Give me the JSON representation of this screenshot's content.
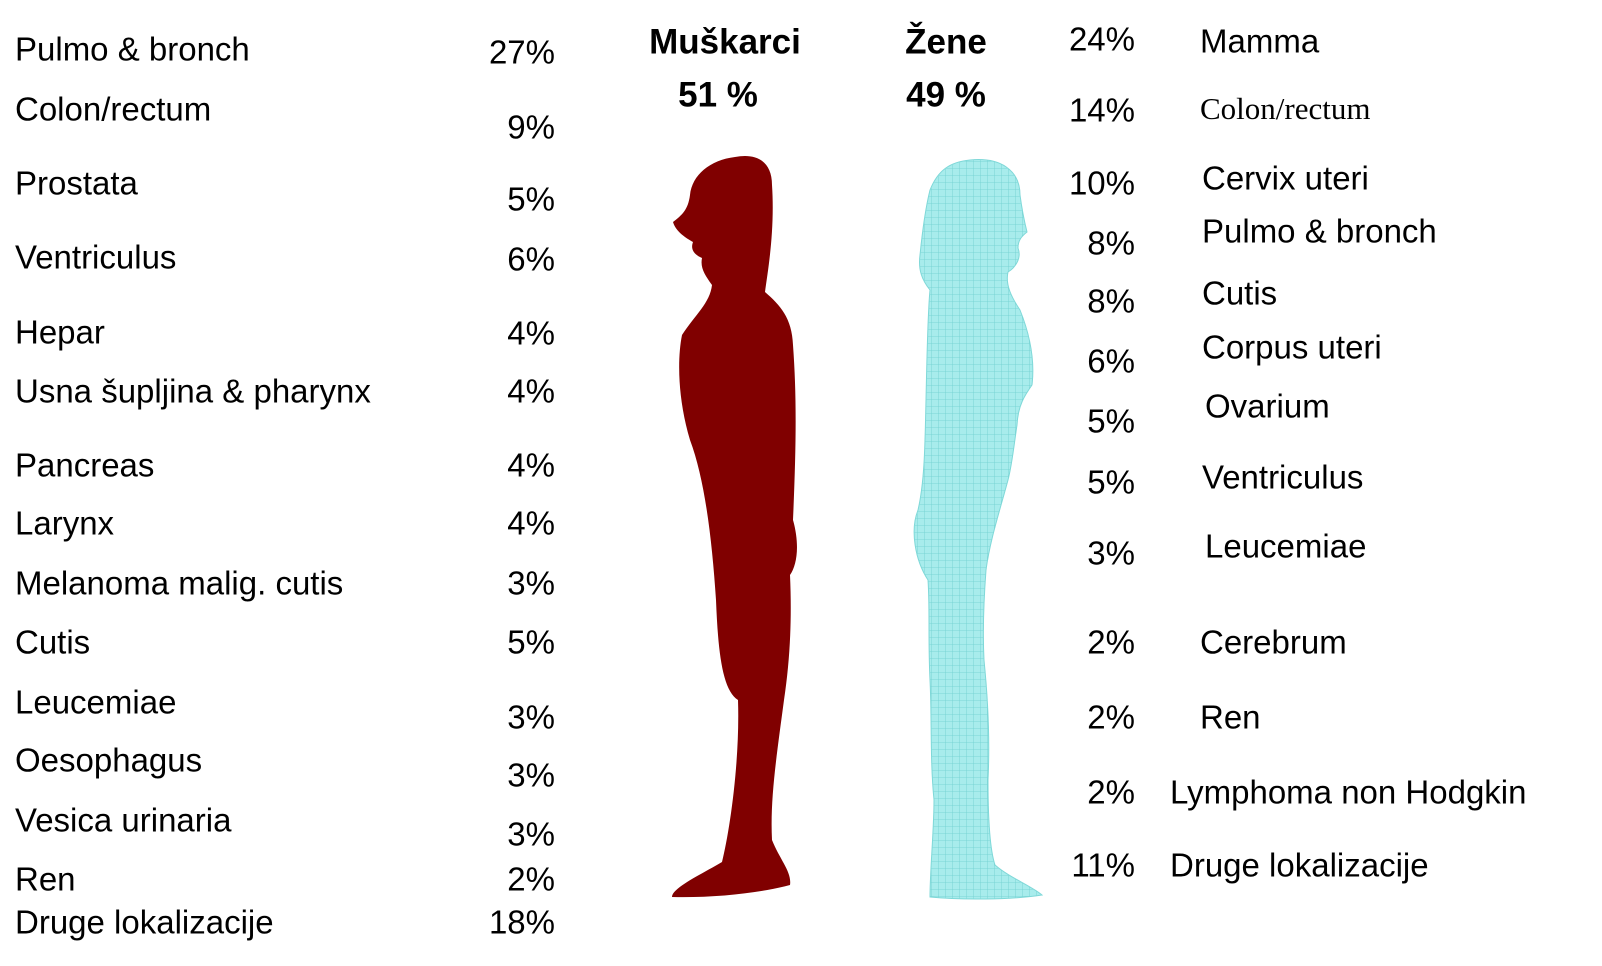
{
  "men": {
    "title": "Muškarci",
    "total": "51 %",
    "rows": [
      {
        "label": "Pulmo & bronch",
        "percent": "27%"
      },
      {
        "label": "Colon/rectum",
        "percent": "9%"
      },
      {
        "label": "Prostata",
        "percent": "5%"
      },
      {
        "label": "Ventriculus",
        "percent": "6%"
      },
      {
        "label": "Hepar",
        "percent": "4%"
      },
      {
        "label": "Usna šupljina & pharynx",
        "percent": "4%"
      },
      {
        "label": "Pancreas",
        "percent": "4%"
      },
      {
        "label": "Larynx",
        "percent": "4%"
      },
      {
        "label": "Melanoma malig. cutis",
        "percent": "3%"
      },
      {
        "label": "Cutis",
        "percent": "5%"
      },
      {
        "label": "Leucemiae",
        "percent": "3%"
      },
      {
        "label": "Oesophagus",
        "percent": "3%"
      },
      {
        "label": "Vesica urinaria",
        "percent": "3%"
      },
      {
        "label": "Ren",
        "percent": "2%"
      },
      {
        "label": "Druge lokalizacije",
        "percent": "18%"
      }
    ]
  },
  "women": {
    "title": "Žene",
    "total": "49 %",
    "rows": [
      {
        "label": "Mamma",
        "percent": "24%"
      },
      {
        "label": "Colon/rectum",
        "percent": "14%"
      },
      {
        "label": "Cervix uteri",
        "percent": "10%"
      },
      {
        "label": "Pulmo & bronch",
        "percent": "8%"
      },
      {
        "label": "Cutis",
        "percent": "8%"
      },
      {
        "label": "Corpus uteri",
        "percent": "6%"
      },
      {
        "label": "Ovarium",
        "percent": "5%"
      },
      {
        "label": "Ventriculus",
        "percent": "5%"
      },
      {
        "label": "Leucemiae",
        "percent": "3%"
      },
      {
        "label": "Cerebrum",
        "percent": "2%"
      },
      {
        "label": "Ren",
        "percent": "2%"
      },
      {
        "label": "Lymphoma non Hodgkin",
        "percent": "2%"
      },
      {
        "label": "Druge lokalizacije",
        "percent": "11%"
      }
    ]
  }
}
